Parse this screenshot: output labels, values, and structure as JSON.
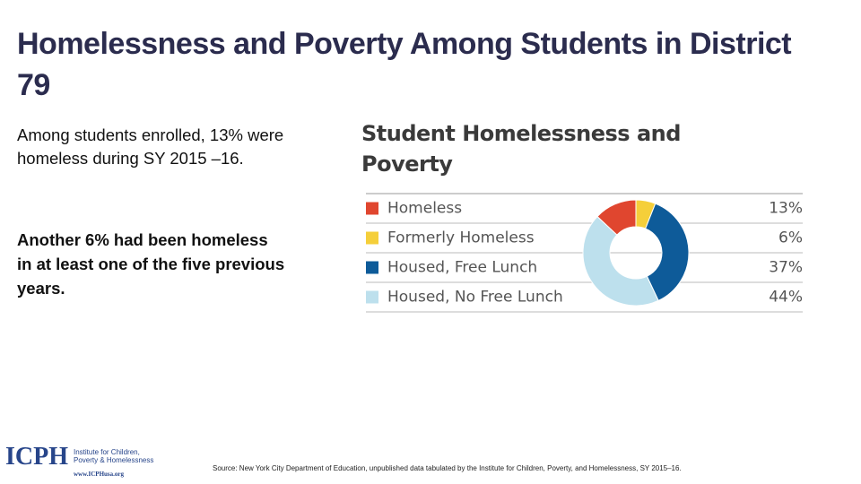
{
  "title": "Homelessness and Poverty Among Students in District 79",
  "body": [
    "Among students enrolled, 13% were homeless during SY 2015 –16.",
    "Another 6% had been homeless in at least one of the five previous years."
  ],
  "source": "Source: New York City Department of Education, unpublished data tabulated by the Institute for Children, Poverty, and Homelessness, SY 2015–16.",
  "logo": {
    "abbr": "ICPH",
    "name": "Institute for Children, Poverty & Homelessness",
    "url": "www.ICPHusa.org"
  },
  "chart_data": {
    "type": "donut",
    "title": "Student Homelessness and Poverty",
    "categories": [
      "Homeless",
      "Formerly Homeless",
      "Housed, Free Lunch",
      "Housed, No Free Lunch"
    ],
    "values": [
      13,
      6,
      37,
      44
    ],
    "value_labels": [
      "13%",
      "6%",
      "37%",
      "44%"
    ],
    "colors": [
      "#e0462f",
      "#f5cf3a",
      "#0e5b99",
      "#bde0ed"
    ]
  }
}
